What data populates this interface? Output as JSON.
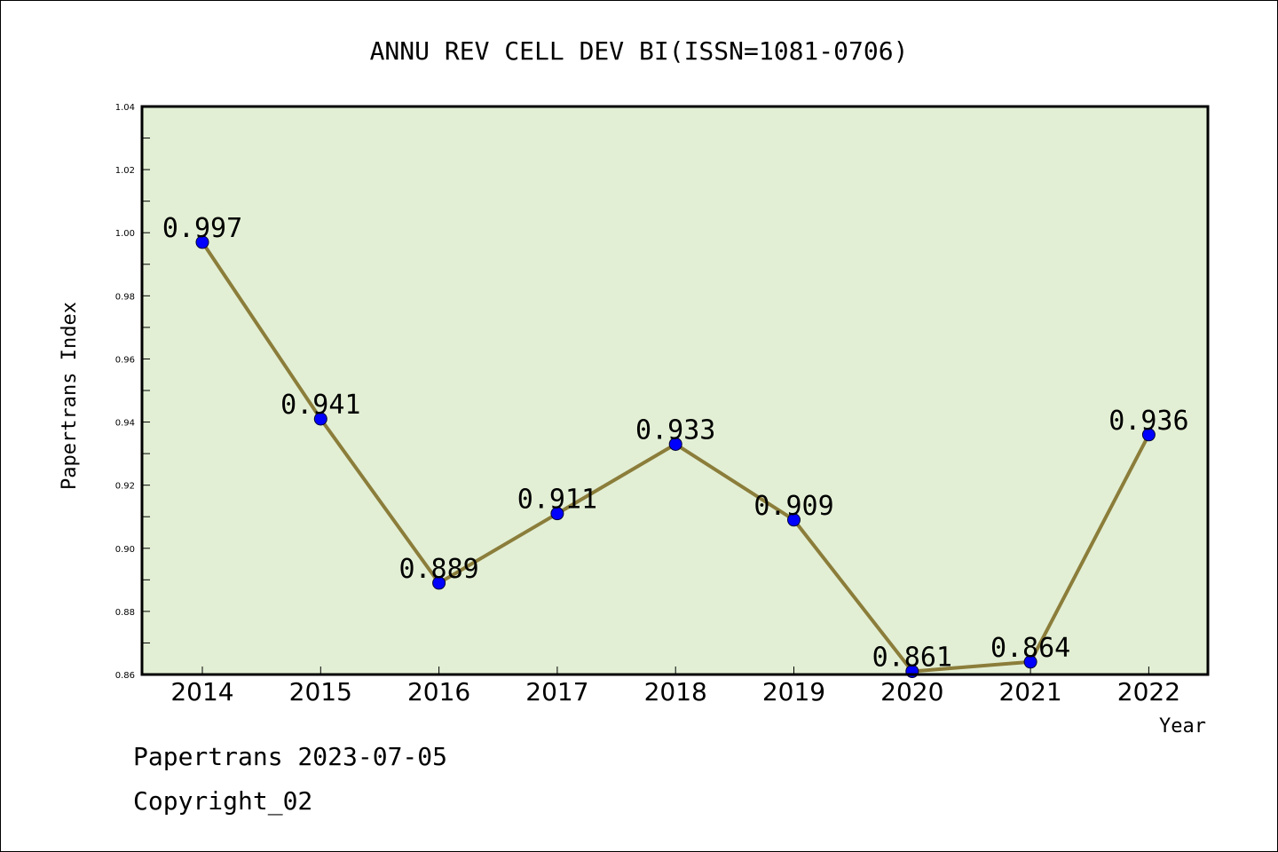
{
  "chart_data": {
    "type": "line",
    "title": "ANNU REV CELL DEV BI(ISSN=1081-0706)",
    "xlabel": "Year",
    "ylabel": "Papertrans Index",
    "categories": [
      "2014",
      "2015",
      "2016",
      "2017",
      "2018",
      "2019",
      "2020",
      "2021",
      "2022"
    ],
    "values": [
      0.997,
      0.941,
      0.889,
      0.911,
      0.933,
      0.909,
      0.861,
      0.864,
      0.936
    ],
    "data_labels": [
      "0.997",
      "0.941",
      "0.889",
      "0.911",
      "0.933",
      "0.909",
      "0.861",
      "0.864",
      "0.936"
    ],
    "ylim": [
      0.86,
      1.04
    ],
    "yticks": [
      "0.86",
      "0.88",
      "0.90",
      "0.92",
      "0.94",
      "0.96",
      "0.98",
      "1.00",
      "1.02",
      "1.04"
    ],
    "grid": false,
    "colors": {
      "plot_background": "#e2efd4",
      "line": "#8b7d3a",
      "marker": "#0000ff"
    }
  },
  "footer": {
    "line1": "Papertrans 2023-07-05",
    "line2": "Copyright_02"
  }
}
